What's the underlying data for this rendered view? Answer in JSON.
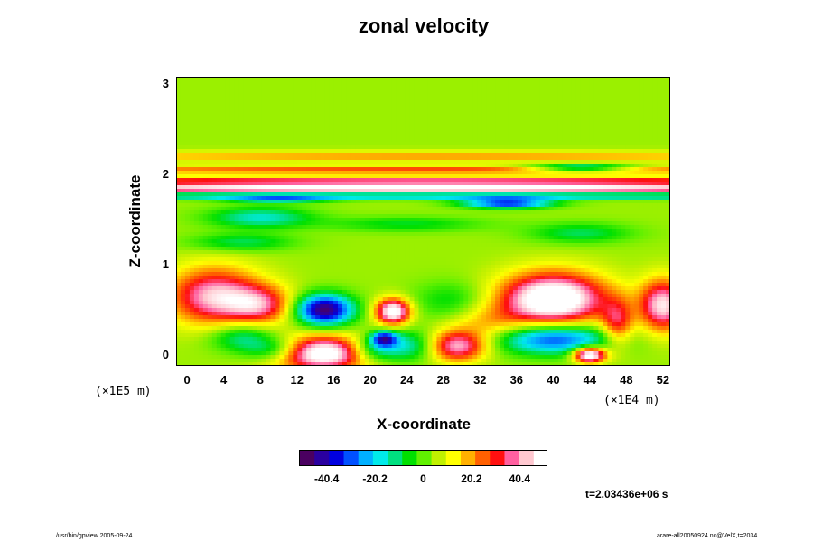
{
  "chart_data": {
    "type": "heatmap",
    "title": "zonal velocity",
    "xlabel": "X-coordinate",
    "ylabel": "Z-coordinate",
    "x_tick_labels": [
      "0",
      "4",
      "8",
      "12",
      "16",
      "20",
      "24",
      "28",
      "32",
      "36",
      "40",
      "44",
      "48",
      "52"
    ],
    "x_ticks": [
      0,
      4,
      8,
      12,
      16,
      20,
      24,
      28,
      32,
      36,
      40,
      44,
      48,
      52
    ],
    "y_tick_labels": [
      "0",
      "1",
      "2",
      "3"
    ],
    "y_ticks": [
      0,
      1,
      2,
      3
    ],
    "xlim": [
      -1.2,
      52.8
    ],
    "ylim": [
      -0.12,
      3.08
    ],
    "x_scale_label": "(×1E4 m)",
    "y_scale_label": "(×1E5 m)",
    "colorbar": {
      "range": [
        -52,
        52
      ],
      "tick_labels": [
        "-40.4",
        "-20.2",
        "0",
        "20.2",
        "40.4"
      ],
      "tick_values": [
        -40.4,
        -20.2,
        0,
        20.2,
        40.4
      ],
      "colors": [
        "#4a0060",
        "#2a00a0",
        "#0000e0",
        "#0050ff",
        "#00b0ff",
        "#00eaea",
        "#00e080",
        "#00e000",
        "#60f000",
        "#c0f000",
        "#ffff00",
        "#ffb000",
        "#ff6000",
        "#ff1010",
        "#ff60a0",
        "#ffc8d0",
        "#ffffff"
      ]
    },
    "background_value": 4,
    "features": [
      {
        "x": 26,
        "z": 2.2,
        "sx": 40,
        "sz": 0.04,
        "value": 18
      },
      {
        "x": 26,
        "z": 1.92,
        "sx": 40,
        "sz": 0.035,
        "value": 40
      },
      {
        "x": 26,
        "z": 1.84,
        "sx": 40,
        "sz": 0.025,
        "value": 60
      },
      {
        "x": 26,
        "z": 2.05,
        "sx": 40,
        "sz": 0.03,
        "value": 25
      },
      {
        "x": 26,
        "z": 1.76,
        "sx": 40,
        "sz": 0.025,
        "value": -30
      },
      {
        "x": 10,
        "z": 1.72,
        "sx": 4,
        "sz": 0.03,
        "value": -20
      },
      {
        "x": 35,
        "z": 1.68,
        "sx": 3.5,
        "sz": 0.04,
        "value": -42
      },
      {
        "x": 43,
        "z": 2.07,
        "sx": 4,
        "sz": 0.03,
        "value": -35
      },
      {
        "x": 8,
        "z": 1.52,
        "sx": 4,
        "sz": 0.08,
        "value": -22
      },
      {
        "x": 24,
        "z": 1.45,
        "sx": 6,
        "sz": 0.06,
        "value": -12
      },
      {
        "x": 43,
        "z": 1.35,
        "sx": 4,
        "sz": 0.08,
        "value": -15
      },
      {
        "x": 6,
        "z": 1.25,
        "sx": 4,
        "sz": 0.07,
        "value": -15
      },
      {
        "x": 3,
        "z": 0.65,
        "sx": 3.5,
        "sz": 0.22,
        "value": 42
      },
      {
        "x": 8,
        "z": 0.55,
        "sx": 2.5,
        "sz": 0.15,
        "value": 30
      },
      {
        "x": 15,
        "z": 0.5,
        "sx": 2.2,
        "sz": 0.12,
        "value": -55
      },
      {
        "x": 22.5,
        "z": 0.48,
        "sx": 1.3,
        "sz": 0.1,
        "value": 55
      },
      {
        "x": 14.5,
        "z": 0.02,
        "sx": 4,
        "sz": 0.13,
        "value": 60
      },
      {
        "x": 10,
        "z": 0.05,
        "sx": 2.5,
        "sz": 0.1,
        "value": -30
      },
      {
        "x": 20,
        "z": 0.05,
        "sx": 2,
        "sz": 0.1,
        "value": -25
      },
      {
        "x": 29.5,
        "z": 0.1,
        "sx": 2.2,
        "sz": 0.12,
        "value": 42
      },
      {
        "x": 24,
        "z": 0.1,
        "sx": 2.5,
        "sz": 0.12,
        "value": -22
      },
      {
        "x": 21.5,
        "z": 0.18,
        "sx": 1,
        "sz": 0.06,
        "value": -40
      },
      {
        "x": 40,
        "z": 0.62,
        "sx": 4,
        "sz": 0.2,
        "value": 62
      },
      {
        "x": 40,
        "z": 0.18,
        "sx": 4.5,
        "sz": 0.12,
        "value": -40
      },
      {
        "x": 44,
        "z": 0.0,
        "sx": 1.2,
        "sz": 0.06,
        "value": 60
      },
      {
        "x": 52,
        "z": 0.55,
        "sx": 1.8,
        "sz": 0.2,
        "value": 45
      },
      {
        "x": 47,
        "z": 0.35,
        "sx": 1.2,
        "sz": 0.18,
        "value": 28
      },
      {
        "x": 29,
        "z": 0.6,
        "sx": 3,
        "sz": 0.15,
        "value": -12
      },
      {
        "x": 33,
        "z": 0.35,
        "sx": 3,
        "sz": 0.15,
        "value": 14
      },
      {
        "x": 6,
        "z": 0.2,
        "sx": 2.5,
        "sz": 0.12,
        "value": -20
      }
    ],
    "extra_note": "t=2.03436e+06 s"
  },
  "footer": {
    "left": "/usr/bin/gpview 2005-09-24",
    "right": "arare-all20050924.nc@VelX,t=2034..."
  }
}
